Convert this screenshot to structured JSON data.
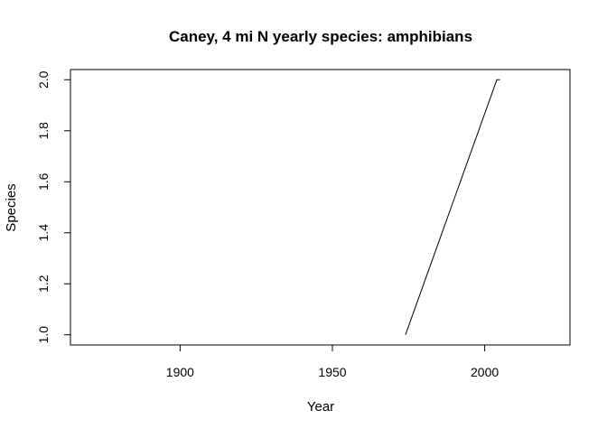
{
  "chart_data": {
    "type": "line",
    "title": "Caney, 4 mi N yearly species: amphibians",
    "xlabel": "Year",
    "ylabel": "Species",
    "xlim": [
      1864,
      2028
    ],
    "ylim": [
      0.96,
      2.04
    ],
    "x_ticks": [
      1900,
      1950,
      2000
    ],
    "y_ticks": [
      1.0,
      1.2,
      1.4,
      1.6,
      1.8,
      2.0
    ],
    "x_tick_labels": [
      "1900",
      "1950",
      "2000"
    ],
    "y_tick_labels": [
      "1.0",
      "1.2",
      "1.4",
      "1.6",
      "1.8",
      "2.0"
    ],
    "grid": false,
    "series": [
      {
        "x": [
          1974,
          2004,
          2005
        ],
        "y": [
          1,
          2,
          2
        ],
        "color": "#000000"
      }
    ]
  }
}
